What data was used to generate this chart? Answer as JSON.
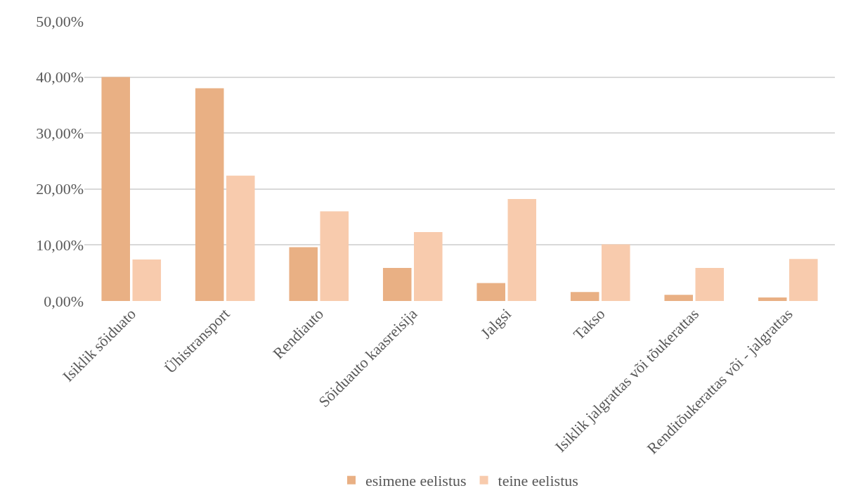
{
  "chart_data": {
    "type": "bar",
    "categories": [
      "Isiklik sõiduato",
      "Ühistransport",
      "Rendiauto",
      "Sõiduauto kaasreisija",
      "Jalgsi",
      "Takso",
      "Isiklik jalgrattas või tõukerattas",
      "Renditõukerattas või - jalgrattas"
    ],
    "series": [
      {
        "name": "esimene eelistus",
        "color": "#e9b084",
        "values": [
          40.0,
          38.0,
          9.6,
          5.9,
          3.2,
          1.6,
          1.1,
          0.6
        ]
      },
      {
        "name": "teine eelistus",
        "color": "#f8cbad",
        "values": [
          7.4,
          22.4,
          16.0,
          12.3,
          18.2,
          10.1,
          5.9,
          7.5
        ]
      }
    ],
    "ylim": [
      0,
      50
    ],
    "yticks": [
      {
        "value": 0,
        "label": "0,00%"
      },
      {
        "value": 10,
        "label": "10,00%"
      },
      {
        "value": 20,
        "label": "20,00%"
      },
      {
        "value": 30,
        "label": "30,00%"
      },
      {
        "value": 40,
        "label": "40,00%"
      },
      {
        "value": 50,
        "label": "50,00%"
      }
    ],
    "grid": "y",
    "legend": "bottom"
  }
}
